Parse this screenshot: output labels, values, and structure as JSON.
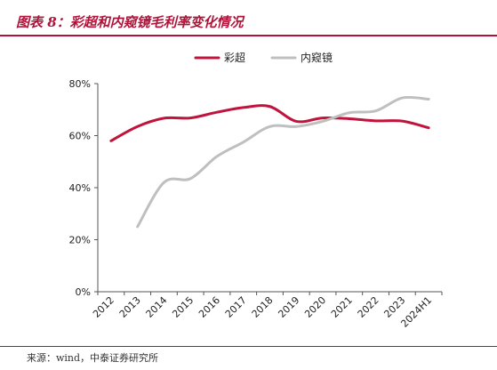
{
  "title": "图表 8：彩超和内窥镜毛利率变化情况",
  "source": "来源：wind，中泰证券研究所",
  "chart_data": {
    "type": "line",
    "categories": [
      "2012",
      "2013",
      "2014",
      "2015",
      "2016",
      "2017",
      "2018",
      "2019",
      "2020",
      "2021",
      "2022",
      "2023",
      "2024H1"
    ],
    "ylim": [
      0,
      80
    ],
    "yticks": [
      "0%",
      "20%",
      "40%",
      "60%",
      "80%"
    ],
    "ytick_values": [
      0,
      20,
      40,
      60,
      80
    ],
    "legend_position": "top-center",
    "grid": false,
    "series": [
      {
        "name": "彩超",
        "color": "#c0143c",
        "values": [
          58,
          63.5,
          66.7,
          66.8,
          69,
          70.8,
          71.2,
          65.5,
          66.8,
          66.5,
          65.7,
          65.6,
          63
        ]
      },
      {
        "name": "内窥镜",
        "color": "#bfbfbf",
        "values": [
          null,
          25,
          42,
          43.5,
          52,
          57.5,
          63.5,
          63.5,
          65.5,
          68.8,
          69.5,
          74.5,
          74
        ]
      }
    ]
  }
}
